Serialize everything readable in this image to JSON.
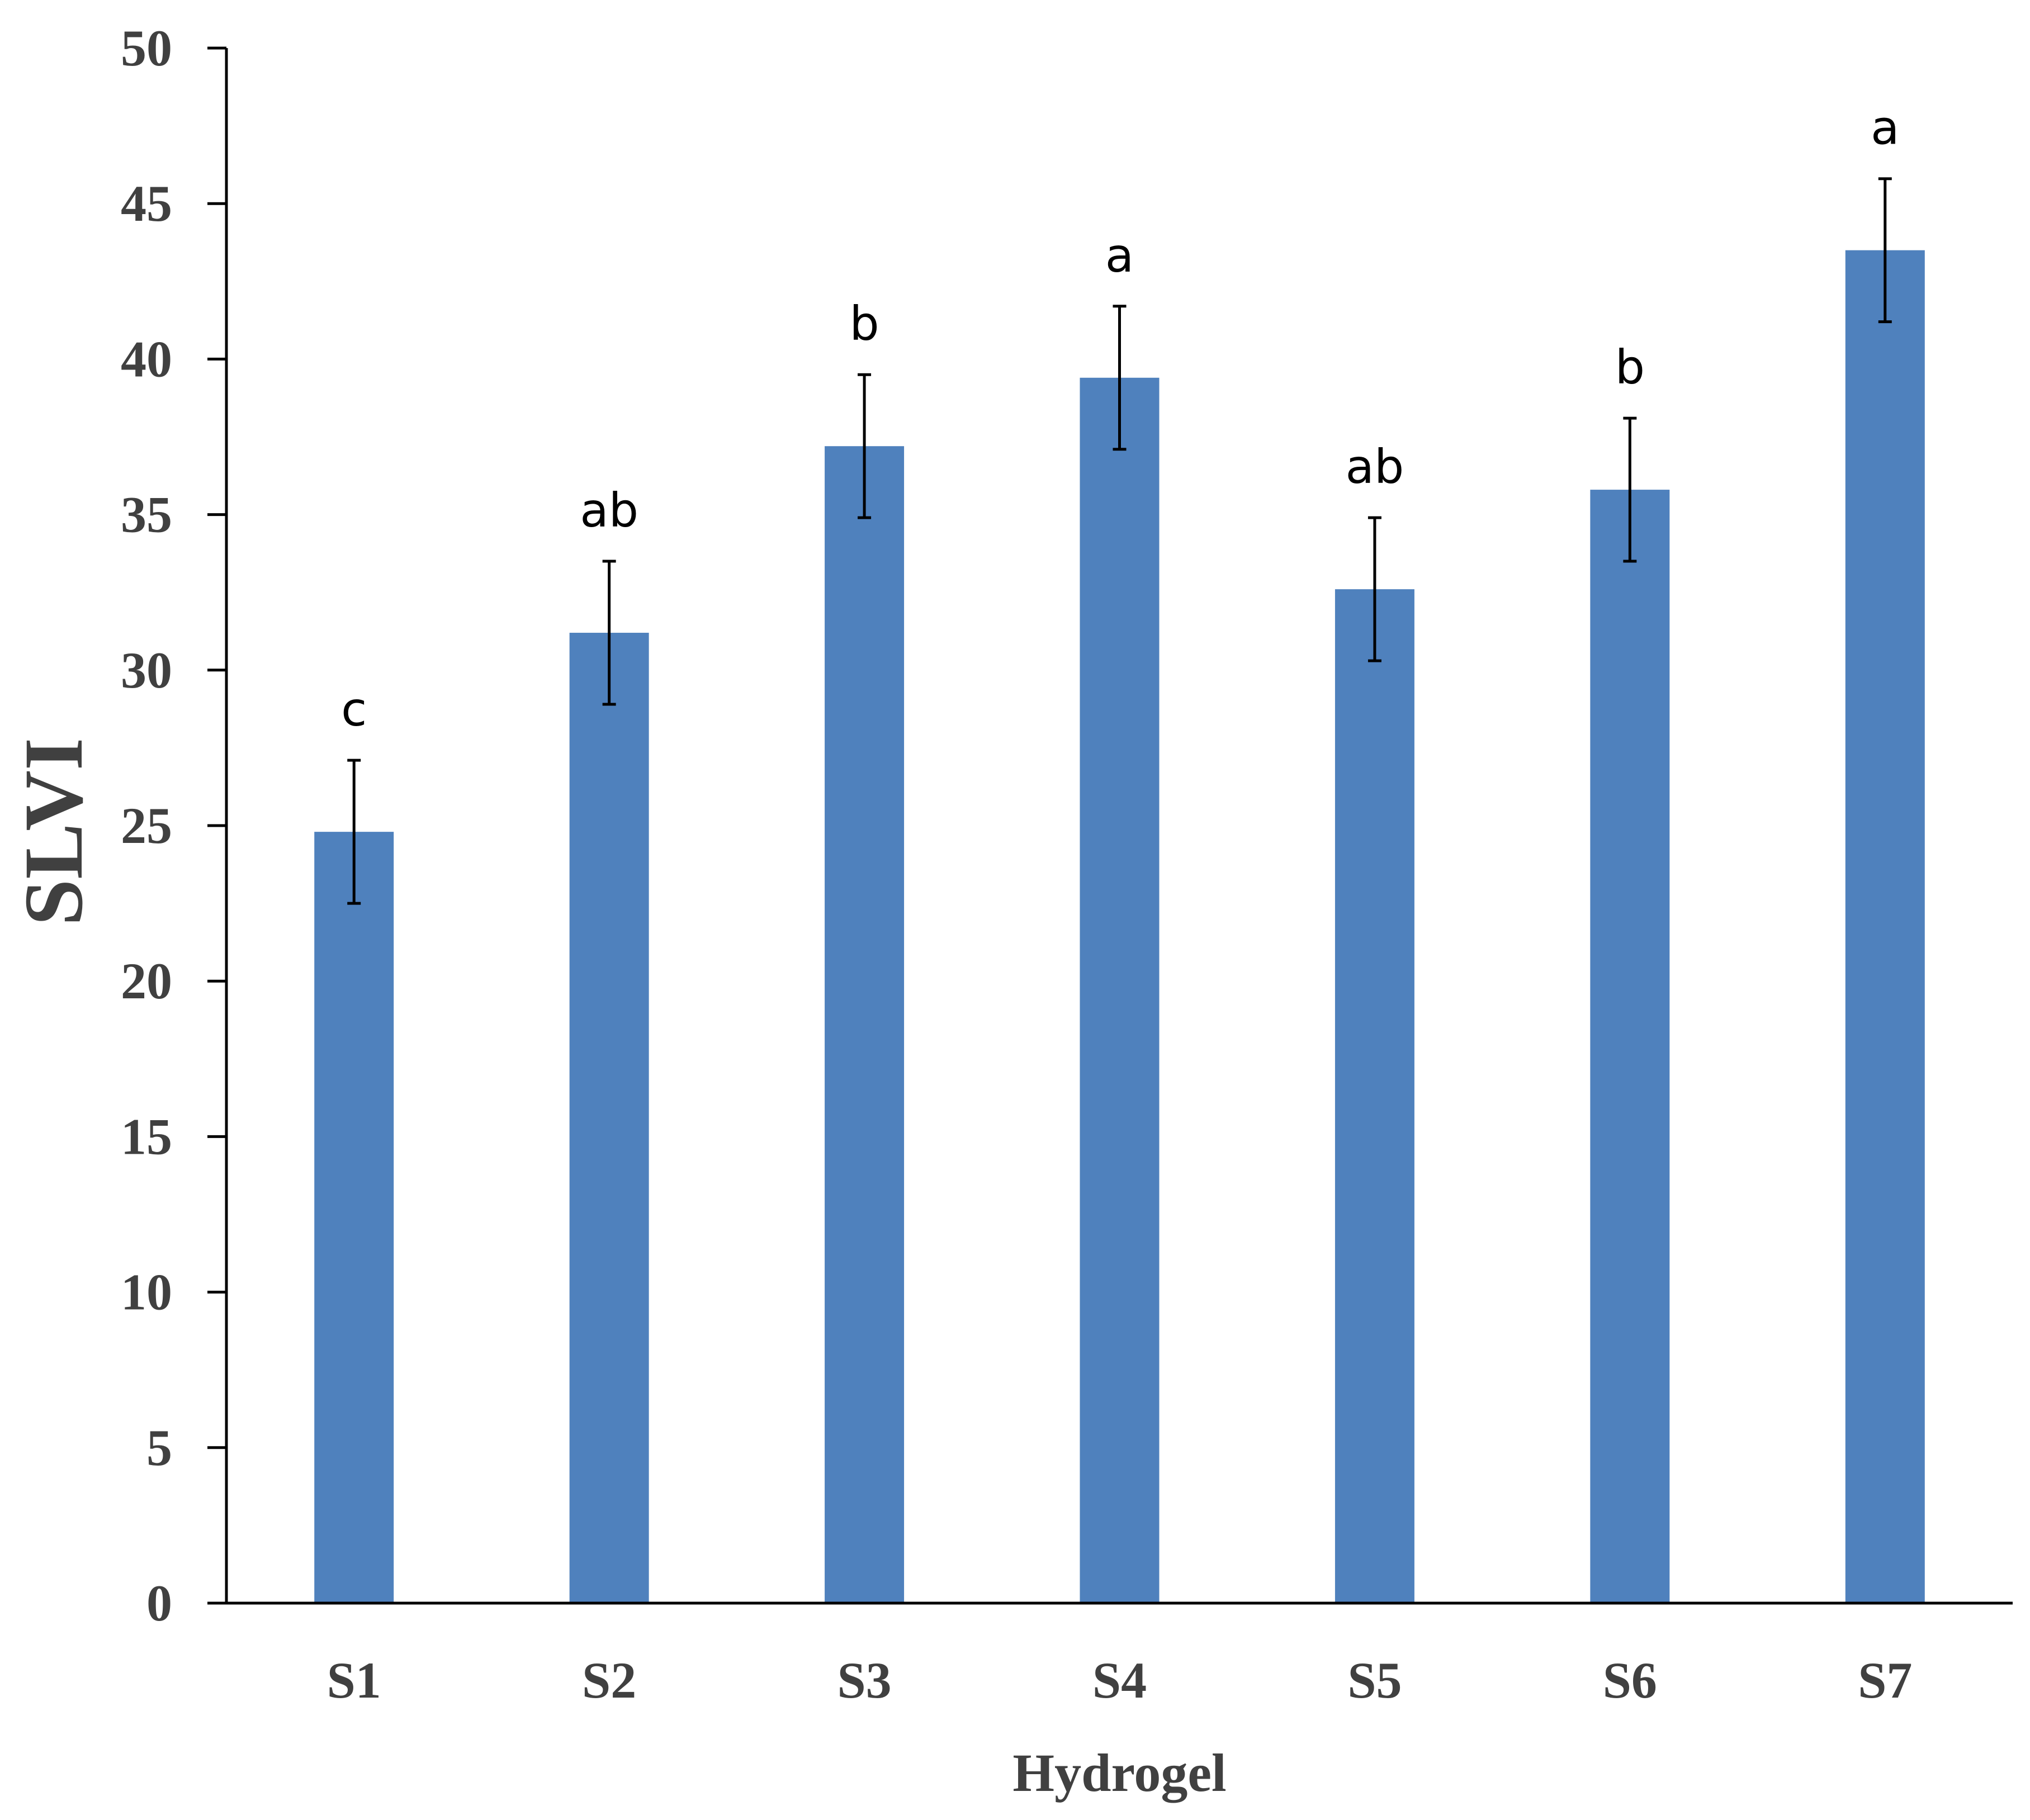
{
  "chart_data": {
    "type": "bar",
    "title": "",
    "xlabel": "Hydrogel",
    "ylabel": "SLVI",
    "categories": [
      "S1",
      "S2",
      "S3",
      "S4",
      "S5",
      "S6",
      "S7"
    ],
    "values": [
      24.8,
      31.2,
      37.2,
      39.4,
      32.6,
      35.8,
      43.5
    ],
    "error": [
      2.3,
      2.3,
      2.3,
      2.3,
      2.3,
      2.3,
      2.3
    ],
    "significance_labels": [
      "c",
      "ab",
      "b",
      "a",
      "ab",
      "b",
      "a"
    ],
    "ylim": [
      0,
      50
    ],
    "yticks": [
      0,
      5,
      10,
      15,
      20,
      25,
      30,
      35,
      40,
      45,
      50
    ],
    "grid": false,
    "legend": "none",
    "colors": {
      "bar": "#4f81bd",
      "axis": "#000000",
      "text": "#404040"
    }
  }
}
